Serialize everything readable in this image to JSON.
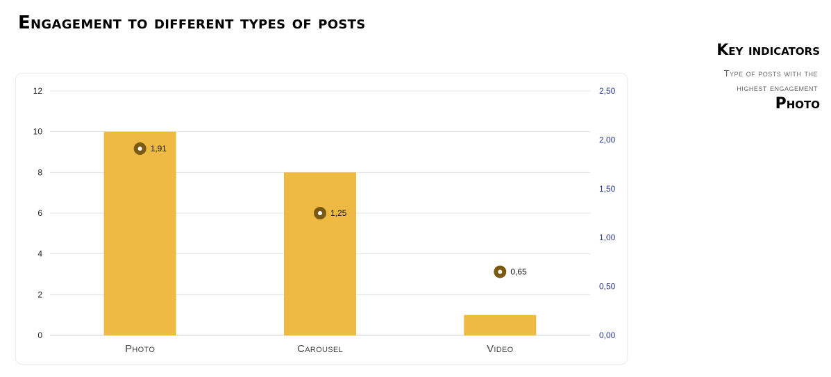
{
  "title": "Engagement to different types of posts",
  "key_indicators": {
    "heading": "Key indicators",
    "label_line1": "Type of posts with the",
    "label_line2": "highest engagement",
    "value": "Photo"
  },
  "colors": {
    "bar": "#eeba44",
    "marker_outer": "#7a5a12",
    "marker_inner": "#ffffff",
    "grid": "#e3e3e3",
    "right_axis_text": "#2b3a8f"
  },
  "chart_data": {
    "type": "bar",
    "categories": [
      "Photo",
      "Carousel",
      "Video"
    ],
    "series": [
      {
        "type": "bar",
        "axis": "left",
        "values": [
          10,
          8,
          1
        ]
      },
      {
        "type": "scatter",
        "axis": "right",
        "values": [
          1.91,
          1.25,
          0.65
        ],
        "labels": [
          "1,91",
          "1,25",
          "0,65"
        ]
      }
    ],
    "left_axis": {
      "ylim": [
        0,
        12
      ],
      "ticks": [
        "0",
        "2",
        "4",
        "6",
        "8",
        "10",
        "12"
      ]
    },
    "right_axis": {
      "ylim": [
        0,
        2.5
      ],
      "ticks": [
        "0,00",
        "0,50",
        "1,00",
        "1,50",
        "2,00",
        "2,50"
      ]
    },
    "grid": true,
    "legend": "none"
  }
}
